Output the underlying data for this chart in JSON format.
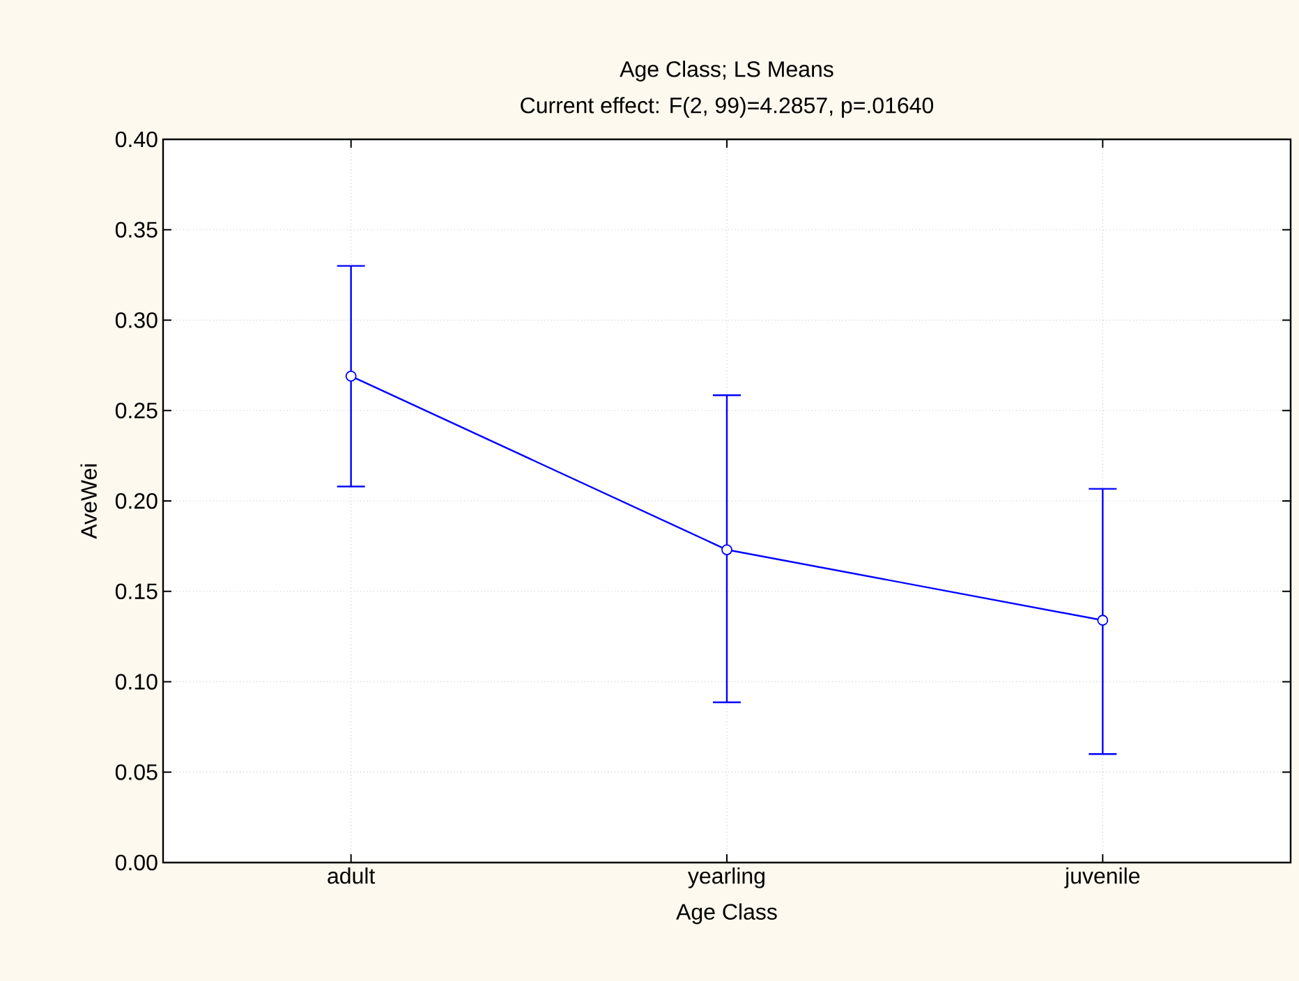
{
  "chart_data": {
    "type": "line",
    "title": "Age Class; LS Means",
    "subtitle": "Current effect: F(2, 99)=4.2857, p=.01640",
    "xlabel": "Age Class",
    "ylabel": "AveWei",
    "categories": [
      "adult",
      "yearling",
      "juvenile"
    ],
    "series": [
      {
        "color": "#0000ff",
        "values": [
          0.269,
          0.173,
          0.134
        ],
        "errors": [
          [
            0.208,
            0.33
          ],
          [
            0.0886,
            0.2585
          ],
          [
            0.06,
            0.2067
          ]
        ]
      }
    ],
    "ylim": [
      0,
      0.4
    ],
    "yticks": [
      {
        "value": 0,
        "label": "0.00"
      },
      {
        "value": 0.05,
        "label": "0.05"
      },
      {
        "value": 0.1,
        "label": "0.10"
      },
      {
        "value": 0.15,
        "label": "0.15"
      },
      {
        "value": 0.2,
        "label": "0.20"
      },
      {
        "value": 0.25,
        "label": "0.25"
      },
      {
        "value": 0.3,
        "label": "0.30"
      },
      {
        "value": 0.35,
        "label": "0.35"
      },
      {
        "value": 0.4,
        "label": "0.40"
      }
    ],
    "grid": true,
    "marker": "circle",
    "line_style": "solid"
  }
}
